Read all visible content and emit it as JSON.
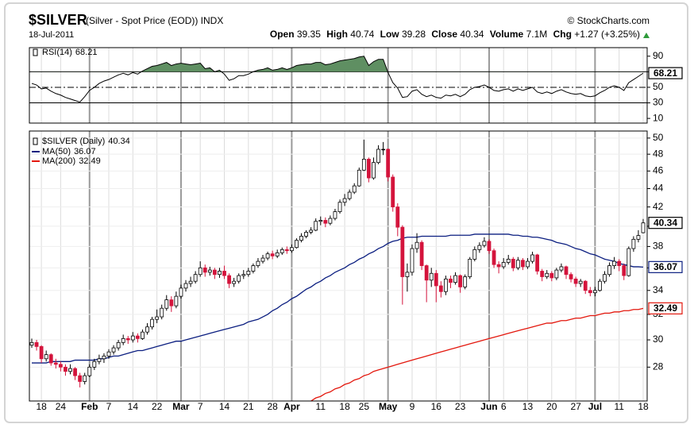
{
  "header": {
    "symbol": "$SILVER",
    "description": "(Silver - Spot Price (EOD)) INDX",
    "date": "18-Jul-2011",
    "source": "© StockCharts.com",
    "open_label": "Open",
    "high_label": "High",
    "low_label": "Low",
    "close_label": "Close",
    "volume_label": "Volume",
    "volume": "7.1M",
    "chg_label": "Chg",
    "chg": "+1.27 (+3.25%)"
  },
  "chart_data": [
    {
      "type": "candlestick",
      "name": "$SILVER (Daily)",
      "up_color": "#ffffff",
      "down_color": "#d4143c",
      "log_scale": true,
      "ylim": [
        25.7,
        50.9
      ],
      "yticks": [
        28,
        30,
        32,
        34,
        36,
        38,
        40,
        42,
        44,
        46,
        48,
        50
      ],
      "categories": [
        null,
        null,
        "18",
        null,
        null,
        null,
        "24",
        null,
        null,
        null,
        null,
        null,
        "Feb",
        null,
        null,
        null,
        "7",
        null,
        null,
        null,
        null,
        "14",
        null,
        null,
        null,
        null,
        "22",
        null,
        null,
        null,
        null,
        "Mar",
        null,
        null,
        null,
        "7",
        null,
        null,
        null,
        null,
        "14",
        null,
        null,
        null,
        null,
        "21",
        null,
        null,
        null,
        null,
        "28",
        null,
        null,
        null,
        "Apr",
        null,
        null,
        null,
        null,
        null,
        "11",
        null,
        null,
        null,
        null,
        "18",
        null,
        null,
        null,
        "25",
        null,
        null,
        null,
        null,
        "May",
        null,
        null,
        null,
        null,
        "9",
        null,
        null,
        null,
        null,
        "16",
        null,
        null,
        null,
        null,
        "23",
        null,
        null,
        null,
        null,
        null,
        "Jun",
        null,
        null,
        "6",
        null,
        null,
        null,
        null,
        "13",
        null,
        null,
        null,
        null,
        "20",
        null,
        null,
        null,
        null,
        "27",
        null,
        null,
        null,
        "Jul",
        null,
        null,
        null,
        null,
        "11",
        null,
        null,
        null,
        null,
        "18"
      ],
      "open": [
        29.6,
        29.8,
        29.5,
        28.6,
        28.9,
        28.3,
        28.2,
        28.0,
        27.7,
        27.9,
        27.4,
        27.0,
        27.4,
        28.0,
        28.4,
        28.6,
        28.8,
        29.1,
        29.4,
        29.8,
        30.1,
        30.0,
        30.3,
        30.1,
        30.6,
        31.0,
        31.6,
        31.8,
        32.5,
        33.2,
        32.7,
        33.5,
        34.2,
        34.6,
        34.8,
        35.4,
        36.0,
        35.6,
        35.8,
        35.4,
        35.7,
        35.3,
        34.6,
        34.8,
        35.3,
        35.4,
        35.7,
        36.2,
        36.6,
        36.9,
        37.3,
        37.1,
        37.4,
        37.7,
        37.6,
        37.9,
        38.6,
        39.0,
        39.4,
        39.6,
        40.5,
        40.6,
        40.3,
        40.8,
        41.5,
        42.5,
        42.9,
        43.6,
        44.3,
        46.1,
        47.4,
        45.2,
        47.0,
        48.6,
        48.6,
        45.3,
        42.0,
        39.9,
        35.2,
        35.6,
        37.8,
        38.4,
        36.2,
        34.9,
        35.5,
        34.4,
        33.9,
        35.0,
        34.7,
        35.3,
        34.3,
        35.2,
        36.8,
        37.7,
        38.1,
        38.5,
        37.6,
        36.3,
        36.1,
        36.5,
        36.8,
        36.0,
        36.7,
        36.1,
        36.6,
        37.2,
        35.7,
        35.2,
        35.5,
        35.1,
        35.8,
        36.1,
        35.4,
        35.0,
        34.6,
        34.8,
        34.0,
        33.8,
        34.0,
        34.8,
        35.4,
        36.2,
        36.6,
        36.2,
        35.3,
        37.8,
        38.7,
        39.35
      ],
      "high": [
        30.1,
        30.0,
        29.6,
        29.2,
        29.0,
        28.6,
        28.4,
        28.2,
        28.2,
        28.0,
        27.6,
        27.6,
        28.2,
        28.6,
        28.9,
        29.0,
        29.3,
        29.6,
        30.0,
        30.4,
        30.3,
        30.6,
        30.5,
        30.8,
        31.3,
        31.8,
        32.4,
        32.8,
        33.6,
        33.5,
        33.9,
        34.5,
        34.9,
        35.2,
        35.7,
        36.6,
        36.3,
        36.1,
        36.0,
        36.0,
        36.2,
        35.5,
        35.1,
        35.5,
        35.8,
        36.0,
        36.4,
        36.9,
        37.2,
        37.5,
        37.6,
        37.7,
        37.9,
        38.0,
        38.2,
        38.8,
        39.3,
        39.6,
        39.9,
        40.8,
        41.0,
        40.9,
        41.1,
        41.8,
        42.8,
        43.4,
        43.9,
        44.6,
        46.4,
        49.8,
        47.6,
        47.6,
        49.1,
        49.5,
        48.7,
        45.6,
        42.4,
        40.1,
        36.4,
        38.2,
        39.3,
        38.6,
        36.3,
        36.0,
        35.8,
        34.8,
        35.3,
        35.3,
        35.6,
        35.4,
        35.4,
        37.0,
        38.0,
        38.4,
        38.9,
        38.7,
        37.8,
        36.6,
        36.9,
        37.2,
        37.0,
        37.0,
        36.9,
        36.9,
        37.5,
        37.3,
        35.9,
        35.8,
        35.7,
        36.0,
        36.4,
        36.2,
        35.6,
        35.2,
        35.0,
        34.9,
        34.3,
        34.3,
        35.0,
        35.7,
        36.5,
        37.0,
        36.8,
        36.4,
        38.0,
        39.0,
        39.6,
        40.74
      ],
      "low": [
        29.4,
        29.2,
        28.3,
        28.4,
        28.1,
        27.9,
        27.7,
        27.4,
        27.5,
        27.1,
        26.6,
        26.8,
        27.3,
        27.8,
        28.2,
        28.3,
        28.6,
        28.9,
        29.2,
        29.6,
        29.7,
        29.8,
        29.8,
        30.0,
        30.4,
        30.8,
        31.3,
        31.6,
        32.3,
        32.2,
        32.5,
        33.3,
        33.9,
        34.3,
        34.6,
        35.2,
        35.2,
        35.3,
        35.0,
        35.1,
        35.0,
        34.2,
        34.3,
        34.6,
        35.0,
        35.2,
        35.5,
        36.0,
        36.4,
        36.7,
        36.8,
        36.9,
        37.2,
        37.3,
        37.4,
        37.8,
        38.4,
        38.8,
        39.2,
        39.5,
        40.1,
        39.9,
        40.1,
        40.6,
        41.3,
        42.1,
        42.7,
        43.4,
        44.2,
        46.0,
        44.7,
        45.0,
        46.8,
        47.9,
        44.8,
        41.5,
        39.0,
        32.8,
        33.9,
        35.3,
        37.4,
        35.8,
        33.0,
        34.3,
        33.0,
        33.4,
        33.6,
        34.2,
        34.5,
        33.8,
        34.1,
        35.0,
        36.6,
        37.4,
        37.9,
        37.3,
        36.0,
        35.5,
        35.9,
        36.3,
        35.7,
        35.8,
        35.8,
        35.9,
        36.4,
        35.4,
        34.8,
        35.0,
        34.8,
        34.9,
        35.6,
        35.0,
        34.7,
        34.3,
        34.3,
        33.7,
        33.5,
        33.5,
        33.9,
        34.6,
        35.2,
        35.9,
        35.7,
        34.9,
        35.2,
        37.5,
        38.4,
        39.28
      ],
      "close": [
        29.8,
        29.5,
        28.6,
        28.9,
        28.3,
        28.2,
        28.0,
        27.7,
        27.9,
        27.4,
        27.0,
        27.4,
        28.0,
        28.4,
        28.6,
        28.8,
        29.1,
        29.4,
        29.8,
        30.1,
        30.0,
        30.3,
        30.1,
        30.6,
        31.0,
        31.6,
        31.8,
        32.5,
        33.2,
        32.7,
        33.5,
        34.2,
        34.6,
        34.8,
        35.4,
        36.0,
        35.6,
        35.8,
        35.4,
        35.7,
        35.3,
        34.6,
        34.8,
        35.3,
        35.4,
        35.7,
        36.2,
        36.6,
        36.9,
        37.3,
        37.1,
        37.4,
        37.7,
        37.6,
        37.9,
        38.6,
        39.0,
        39.4,
        39.6,
        40.5,
        40.6,
        40.3,
        40.8,
        41.5,
        42.5,
        42.9,
        43.6,
        44.3,
        46.1,
        47.4,
        45.2,
        47.0,
        48.6,
        48.6,
        45.3,
        42.0,
        39.9,
        35.2,
        35.6,
        37.8,
        38.4,
        36.2,
        34.9,
        35.5,
        34.4,
        33.9,
        35.0,
        34.7,
        35.3,
        34.3,
        35.2,
        36.8,
        37.7,
        38.1,
        38.5,
        37.6,
        36.3,
        36.1,
        36.5,
        36.8,
        36.0,
        36.7,
        36.1,
        36.6,
        37.2,
        35.7,
        35.2,
        35.5,
        35.1,
        35.8,
        36.1,
        35.4,
        35.0,
        34.6,
        34.8,
        34.0,
        33.8,
        34.0,
        34.8,
        35.4,
        36.2,
        36.6,
        36.2,
        35.3,
        37.8,
        38.7,
        39.07,
        40.34
      ],
      "series": [
        {
          "name": "MA(50)",
          "color": "#0b1e80",
          "values": [
            28.3,
            28.3,
            28.3,
            28.3,
            28.4,
            28.4,
            28.4,
            28.4,
            28.4,
            28.5,
            28.5,
            28.5,
            28.5,
            28.5,
            28.6,
            28.6,
            28.7,
            28.8,
            28.8,
            28.9,
            29.0,
            29.1,
            29.2,
            29.2,
            29.3,
            29.4,
            29.5,
            29.6,
            29.7,
            29.8,
            29.9,
            29.9,
            30.0,
            30.1,
            30.2,
            30.3,
            30.4,
            30.5,
            30.6,
            30.7,
            30.8,
            30.9,
            31.0,
            31.1,
            31.2,
            31.4,
            31.5,
            31.6,
            31.8,
            32.0,
            32.3,
            32.5,
            32.8,
            33.0,
            33.3,
            33.5,
            33.8,
            34.1,
            34.3,
            34.6,
            34.8,
            35.1,
            35.3,
            35.6,
            35.8,
            36.0,
            36.3,
            36.5,
            36.8,
            37.0,
            37.3,
            37.5,
            37.8,
            38.0,
            38.3,
            38.5,
            38.6,
            38.8,
            38.9,
            38.9,
            38.9,
            39.0,
            39.0,
            39.0,
            39.0,
            39.0,
            39.0,
            39.1,
            39.1,
            39.1,
            39.1,
            39.1,
            39.2,
            39.2,
            39.2,
            39.2,
            39.2,
            39.2,
            39.2,
            39.2,
            39.1,
            39.1,
            39.0,
            39.0,
            38.9,
            38.9,
            38.8,
            38.7,
            38.6,
            38.4,
            38.3,
            38.2,
            38.0,
            37.8,
            37.7,
            37.5,
            37.3,
            37.2,
            37.0,
            36.8,
            36.7,
            36.6,
            36.4,
            36.3,
            36.2,
            36.1,
            36.1,
            36.07
          ]
        },
        {
          "name": "MA(200)",
          "color": "#e3170d",
          "values": [
            null,
            null,
            null,
            null,
            null,
            null,
            null,
            null,
            null,
            null,
            null,
            null,
            null,
            null,
            null,
            null,
            null,
            null,
            null,
            null,
            null,
            null,
            null,
            null,
            null,
            null,
            null,
            null,
            null,
            null,
            null,
            null,
            null,
            null,
            null,
            null,
            null,
            null,
            null,
            null,
            null,
            null,
            null,
            null,
            null,
            null,
            null,
            null,
            null,
            null,
            null,
            null,
            null,
            null,
            null,
            null,
            null,
            25.6,
            25.7,
            25.9,
            26.0,
            26.2,
            26.3,
            26.5,
            26.6,
            26.8,
            26.9,
            27.1,
            27.2,
            27.4,
            27.5,
            27.7,
            27.8,
            27.9,
            28.0,
            28.1,
            28.2,
            28.3,
            28.4,
            28.5,
            28.6,
            28.7,
            28.8,
            28.9,
            29.0,
            29.1,
            29.2,
            29.3,
            29.4,
            29.5,
            29.6,
            29.7,
            29.8,
            29.9,
            30.0,
            30.1,
            30.2,
            30.3,
            30.4,
            30.5,
            30.6,
            30.7,
            30.8,
            30.9,
            31.0,
            31.1,
            31.2,
            31.3,
            31.3,
            31.4,
            31.5,
            31.5,
            31.6,
            31.7,
            31.7,
            31.8,
            31.9,
            31.9,
            32.0,
            32.1,
            32.1,
            32.2,
            32.2,
            32.3,
            32.3,
            32.4,
            32.4,
            32.49
          ]
        }
      ]
    },
    {
      "type": "line",
      "ylim": [
        4,
        101
      ],
      "yticks": [
        10,
        30,
        50,
        70,
        90
      ],
      "overbought": 70,
      "midline": 50,
      "oversold": 30,
      "fill_color": "#5f8f62",
      "series": [
        {
          "name": "RSI(14)",
          "color": "#000000",
          "values": [
            55,
            53,
            48,
            49,
            45,
            42,
            40,
            37,
            35,
            33,
            31,
            38,
            46,
            50,
            55,
            58,
            60,
            63,
            66,
            68,
            66,
            69,
            67,
            71,
            74,
            77,
            78,
            80,
            82,
            78,
            80,
            81,
            80,
            79,
            80,
            81,
            74,
            75,
            70,
            72,
            67,
            59,
            61,
            65,
            65,
            67,
            70,
            72,
            73,
            75,
            72,
            73,
            75,
            73,
            75,
            78,
            79,
            80,
            80,
            82,
            82,
            79,
            80,
            82,
            84,
            85,
            86,
            87,
            89,
            90,
            78,
            83,
            86,
            86,
            69,
            56,
            49,
            37,
            38,
            45,
            47,
            41,
            38,
            40,
            37,
            36,
            40,
            39,
            41,
            38,
            41,
            47,
            50,
            51,
            53,
            50,
            46,
            45,
            47,
            48,
            45,
            48,
            46,
            48,
            50,
            44,
            42,
            44,
            42,
            45,
            47,
            44,
            42,
            41,
            42,
            39,
            38,
            39,
            43,
            46,
            50,
            52,
            50,
            46,
            56,
            60,
            64,
            68.21
          ]
        }
      ]
    }
  ]
}
